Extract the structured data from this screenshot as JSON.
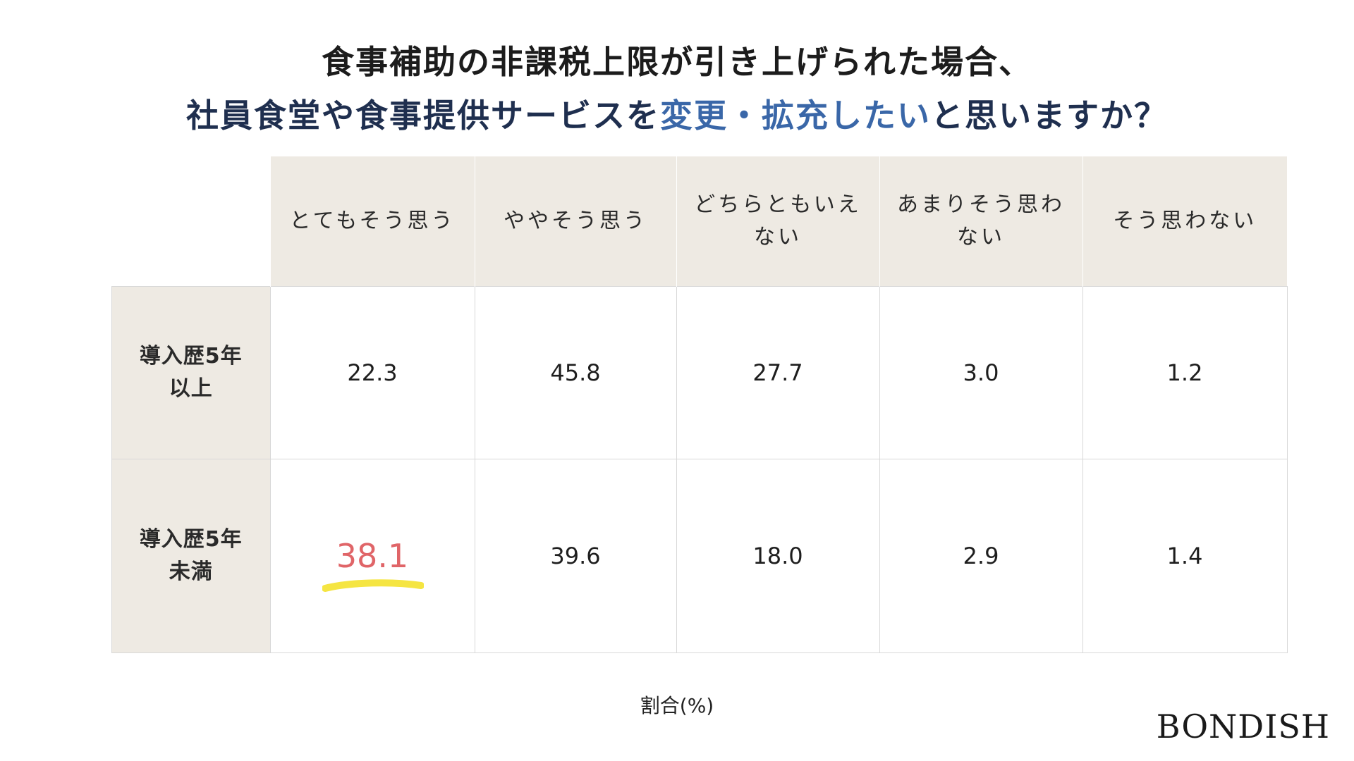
{
  "title": {
    "line1": "食事補助の非課税上限が引き上げられた場合、",
    "line2_a": "社員食堂や食事提供サービスを",
    "line2_b": "変更・拡充したい",
    "line2_c": "と思いますか？"
  },
  "chart_data": {
    "type": "table",
    "columns": [
      "とてもそう思う",
      "ややそう思う",
      "どちらともいえない",
      "あまりそう思わない",
      "そう思わない"
    ],
    "rows": [
      {
        "label_lines": [
          "導入歴5年",
          "以上"
        ],
        "values": [
          "22.3",
          "45.8",
          "27.7",
          "3.0",
          "1.2"
        ]
      },
      {
        "label_lines": [
          "導入歴5年",
          "未満"
        ],
        "values": [
          "38.1",
          "39.6",
          "18.0",
          "2.9",
          "1.4"
        ]
      }
    ],
    "xlabel": "割合(%)",
    "highlight": {
      "row": 1,
      "col": 0,
      "color": "#e06568",
      "marker_color": "#f5e542"
    }
  },
  "header_lines": [
    [
      "とてもそう思う"
    ],
    [
      "ややそう思う"
    ],
    [
      "どちらともいえ",
      "ない"
    ],
    [
      "あまりそう思わ",
      "ない"
    ],
    [
      "そう思わない"
    ]
  ],
  "logo": "BONDISH"
}
